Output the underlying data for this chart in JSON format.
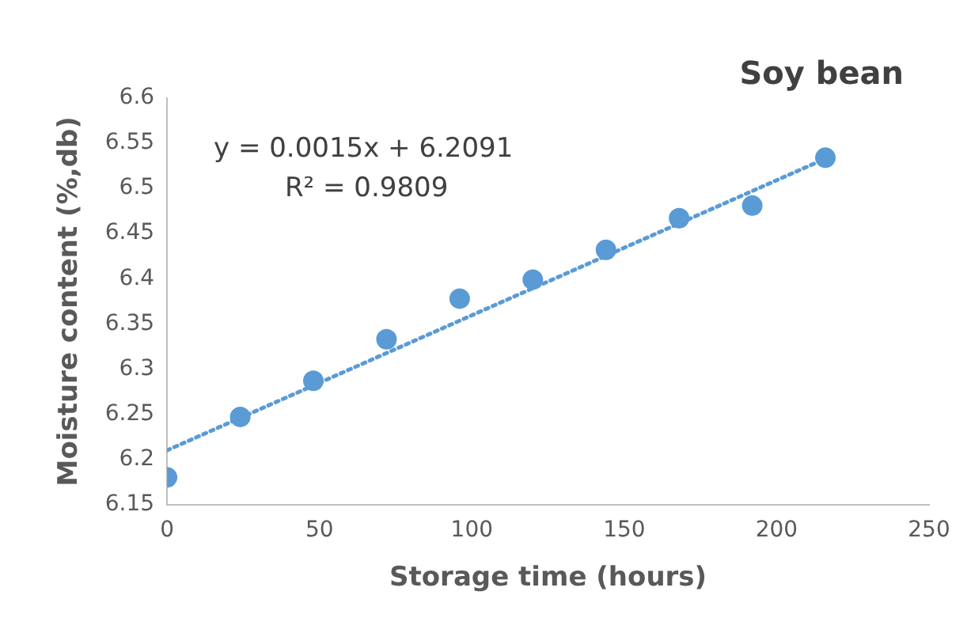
{
  "chart_data": {
    "type": "scatter",
    "title": "Soy bean",
    "xlabel": "Storage time (hours)",
    "ylabel": "Moisture content (%,db)",
    "annotations": [
      "y = 0.0015x + 6.2091",
      "R² = 0.9809"
    ],
    "series": [
      {
        "type": "scatter",
        "color": "#5b9bd5",
        "x": [
          0,
          24,
          48,
          72,
          96,
          120,
          144,
          168,
          192,
          216
        ],
        "values": [
          6.18,
          6.247,
          6.287,
          6.333,
          6.378,
          6.399,
          6.432,
          6.467,
          6.481,
          6.534
        ],
        "marker": "circle"
      },
      {
        "type": "line",
        "color": "#5b9bd5",
        "x": [
          0,
          216
        ],
        "values": [
          6.21,
          6.533
        ],
        "line_style": "dotted",
        "marker": "none"
      }
    ],
    "xlim": [
      0,
      250
    ],
    "xticks": [
      0,
      50,
      100,
      150,
      200,
      250
    ],
    "ylim": [
      6.15,
      6.6
    ],
    "yticks": [
      6.15,
      6.2,
      6.25,
      6.3,
      6.35,
      6.4,
      6.45,
      6.5,
      6.55,
      6.6
    ],
    "grid": false,
    "legend": false
  }
}
